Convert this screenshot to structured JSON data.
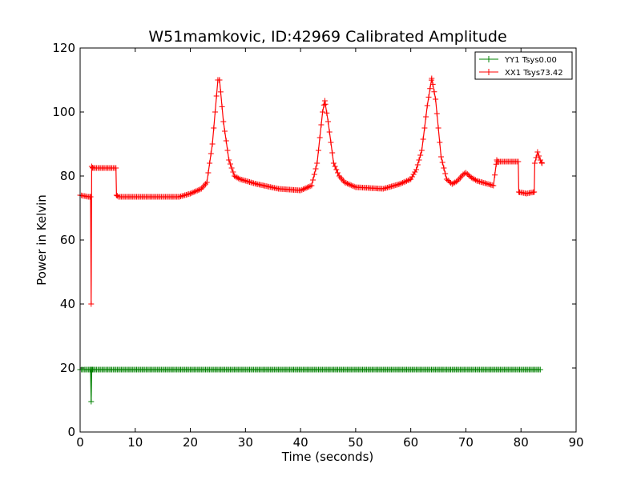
{
  "chart_data": {
    "type": "line",
    "title": "W51mamkovic, ID:42969 Calibrated Amplitude",
    "xlabel": "Time (seconds)",
    "ylabel": "Power in Kelvin",
    "xlim": [
      0,
      90
    ],
    "ylim": [
      0,
      120
    ],
    "xticks": [
      0,
      10,
      20,
      30,
      40,
      50,
      60,
      70,
      80,
      90
    ],
    "yticks": [
      0,
      20,
      40,
      60,
      80,
      100,
      120
    ],
    "grid": false,
    "legend_position": "top-right",
    "marker": "+",
    "series": [
      {
        "name": "YY1 Tsys0.00",
        "color": "#008000",
        "x": [
          0.0,
          1.5,
          1.9,
          2.0,
          2.1,
          2.3,
          5.0,
          10.0,
          12.0,
          20.0,
          30.0,
          40.0,
          50.0,
          60.0,
          70.0,
          75.5,
          80.0,
          83.5
        ],
        "y": [
          19.5,
          19.5,
          19.5,
          9.5,
          19.5,
          19.5,
          19.5,
          19.5,
          19.5,
          19.5,
          19.5,
          19.5,
          19.5,
          19.5,
          19.5,
          19.5,
          19.5,
          19.5
        ]
      },
      {
        "name": "XX1 Tsys73.42",
        "color": "#ff0000",
        "x": [
          0.0,
          1.5,
          1.9,
          2.0,
          2.1,
          2.3,
          3.0,
          6.5,
          6.6,
          7.0,
          12.0,
          16.0,
          18.0,
          20.0,
          22.0,
          23.0,
          24.0,
          25.0,
          25.3,
          26.0,
          27.0,
          28.0,
          29.0,
          32.0,
          36.0,
          40.0,
          42.0,
          43.0,
          44.0,
          44.4,
          45.0,
          46.0,
          47.0,
          48.0,
          50.0,
          55.0,
          58.0,
          60.0,
          61.0,
          62.0,
          63.0,
          63.8,
          64.5,
          65.5,
          66.5,
          67.5,
          68.5,
          69.5,
          70.0,
          71.0,
          72.0,
          75.0,
          75.6,
          75.7,
          77.0,
          79.5,
          79.6,
          81.0,
          82.4,
          82.5,
          83.0,
          83.5,
          83.8
        ],
        "y": [
          74.0,
          73.5,
          73.5,
          40.0,
          83.0,
          82.5,
          82.5,
          82.5,
          74.0,
          73.5,
          73.5,
          73.5,
          73.5,
          74.5,
          76.0,
          78.0,
          90.0,
          110.0,
          110.0,
          97.0,
          85.0,
          80.0,
          79.0,
          77.5,
          76.0,
          75.5,
          77.0,
          84.0,
          100.0,
          103.5,
          97.0,
          84.0,
          80.0,
          78.0,
          76.5,
          76.0,
          77.5,
          79.0,
          82.0,
          88.0,
          102.0,
          110.5,
          104.0,
          86.0,
          79.0,
          77.5,
          78.5,
          80.5,
          81.0,
          79.5,
          78.5,
          77.0,
          85.0,
          84.5,
          84.5,
          84.5,
          75.0,
          74.5,
          75.0,
          84.0,
          87.5,
          85.0,
          84.0
        ]
      }
    ]
  }
}
